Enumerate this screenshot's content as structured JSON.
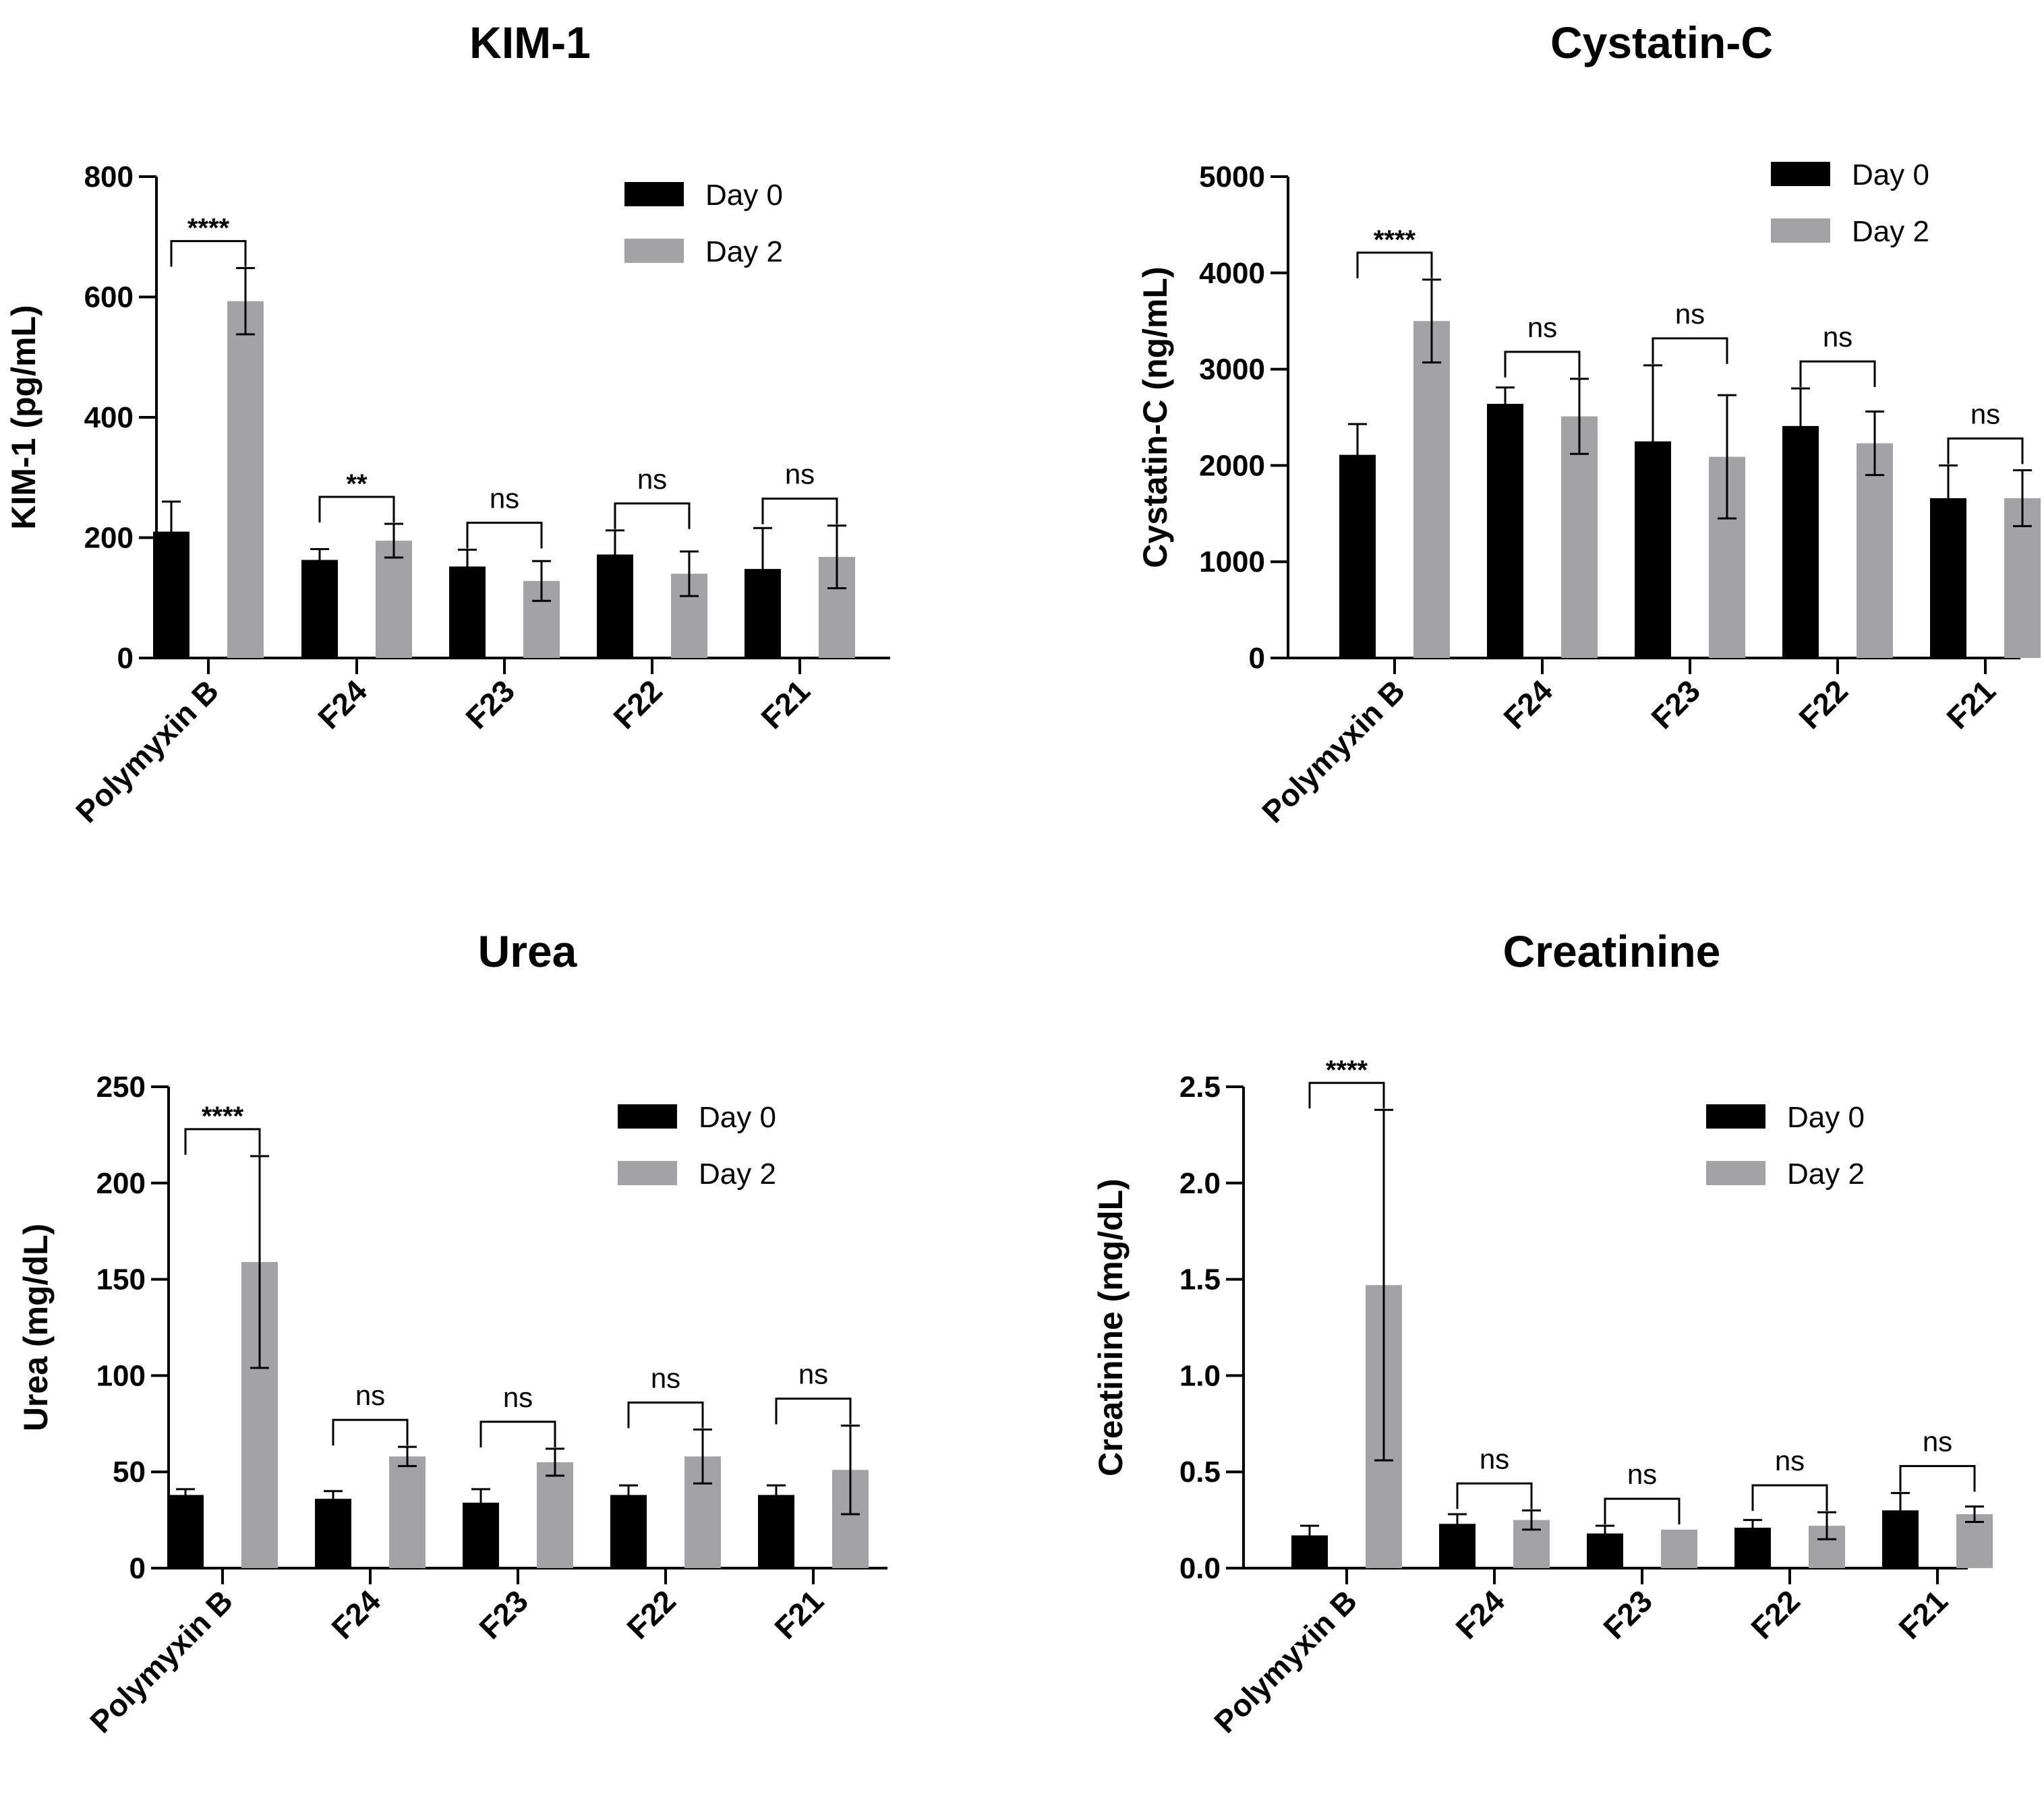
{
  "chart_data": [
    {
      "type": "bar",
      "title": "KIM-1",
      "ylabel": "KIM-1 (pg/mL)",
      "xlabel": "",
      "categories": [
        "Polymyxin B",
        "F24",
        "F23",
        "F22",
        "F21"
      ],
      "ylim": [
        0,
        800
      ],
      "yticks": [
        0,
        200,
        400,
        600,
        800
      ],
      "ytick_labels": [
        "0",
        "200",
        "400",
        "600",
        "800"
      ],
      "series": [
        {
          "name": "Day 0",
          "color": "#000000",
          "values": [
            210,
            163,
            152,
            172,
            148
          ],
          "errors": [
            50,
            18,
            28,
            40,
            68
          ]
        },
        {
          "name": "Day 2",
          "color": "#a3a3a5",
          "values": [
            593,
            195,
            128,
            140,
            168
          ],
          "errors": [
            55,
            28,
            33,
            37,
            52
          ]
        }
      ],
      "significance": [
        "****",
        "**",
        "ns",
        "ns",
        "ns"
      ],
      "legend": {
        "position": "top-right",
        "labels": [
          "Day 0",
          "Day 2"
        ]
      }
    },
    {
      "type": "bar",
      "title": "Cystatin-C",
      "ylabel": "Cystatin-C (ng/mL)",
      "xlabel": "",
      "categories": [
        "Polymyxin B",
        "F24",
        "F23",
        "F22",
        "F21"
      ],
      "ylim": [
        0,
        5000
      ],
      "yticks": [
        0,
        1000,
        2000,
        3000,
        4000,
        5000
      ],
      "ytick_labels": [
        "0",
        "1000",
        "2000",
        "3000",
        "4000",
        "5000"
      ],
      "series": [
        {
          "name": "Day 0",
          "color": "#000000",
          "values": [
            2110,
            2640,
            2250,
            2410,
            1660
          ],
          "errors": [
            320,
            170,
            790,
            390,
            340
          ]
        },
        {
          "name": "Day 2",
          "color": "#a3a3a5",
          "values": [
            3500,
            2510,
            2090,
            2230,
            1660
          ],
          "errors": [
            430,
            390,
            640,
            330,
            290
          ]
        }
      ],
      "significance": [
        "****",
        "ns",
        "ns",
        "ns",
        "ns"
      ],
      "legend": {
        "position": "top-right",
        "labels": [
          "Day 0",
          "Day 2"
        ]
      }
    },
    {
      "type": "bar",
      "title": "Urea",
      "ylabel": "Urea (mg/dL)",
      "xlabel": "",
      "categories": [
        "Polymyxin B",
        "F24",
        "F23",
        "F22",
        "F21"
      ],
      "ylim": [
        0,
        250
      ],
      "yticks": [
        0,
        50,
        100,
        150,
        200,
        250
      ],
      "ytick_labels": [
        "0",
        "50",
        "100",
        "150",
        "200",
        "250"
      ],
      "series": [
        {
          "name": "Day 0",
          "color": "#000000",
          "values": [
            38,
            36,
            34,
            38,
            38
          ],
          "errors": [
            3,
            4,
            7,
            5,
            5
          ]
        },
        {
          "name": "Day 2",
          "color": "#a3a3a5",
          "values": [
            159,
            58,
            55,
            58,
            51
          ],
          "errors": [
            55,
            5,
            7,
            14,
            23
          ]
        }
      ],
      "significance": [
        "****",
        "ns",
        "ns",
        "ns",
        "ns"
      ],
      "legend": {
        "position": "top-right",
        "labels": [
          "Day 0",
          "Day 2"
        ]
      }
    },
    {
      "type": "bar",
      "title": "Creatinine",
      "ylabel": "Creatinine (mg/dL)",
      "xlabel": "",
      "categories": [
        "Polymyxin B",
        "F24",
        "F23",
        "F22",
        "F21"
      ],
      "ylim": [
        0,
        2.5
      ],
      "yticks": [
        0,
        0.5,
        1.0,
        1.5,
        2.0,
        2.5
      ],
      "ytick_labels": [
        "0.0",
        "0.5",
        "1.0",
        "1.5",
        "2.0",
        "2.5"
      ],
      "series": [
        {
          "name": "Day 0",
          "color": "#000000",
          "values": [
            0.17,
            0.23,
            0.18,
            0.21,
            0.3
          ],
          "errors": [
            0.05,
            0.05,
            0.04,
            0.04,
            0.09
          ]
        },
        {
          "name": "Day 2",
          "color": "#a3a3a5",
          "values": [
            1.47,
            0.25,
            0.2,
            0.22,
            0.28
          ],
          "errors": [
            0.91,
            0.05,
            0.0,
            0.07,
            0.04
          ]
        }
      ],
      "significance": [
        "****",
        "ns",
        "ns",
        "ns",
        "ns"
      ],
      "legend": {
        "position": "top-right",
        "labels": [
          "Day 0",
          "Day 2"
        ]
      }
    }
  ]
}
